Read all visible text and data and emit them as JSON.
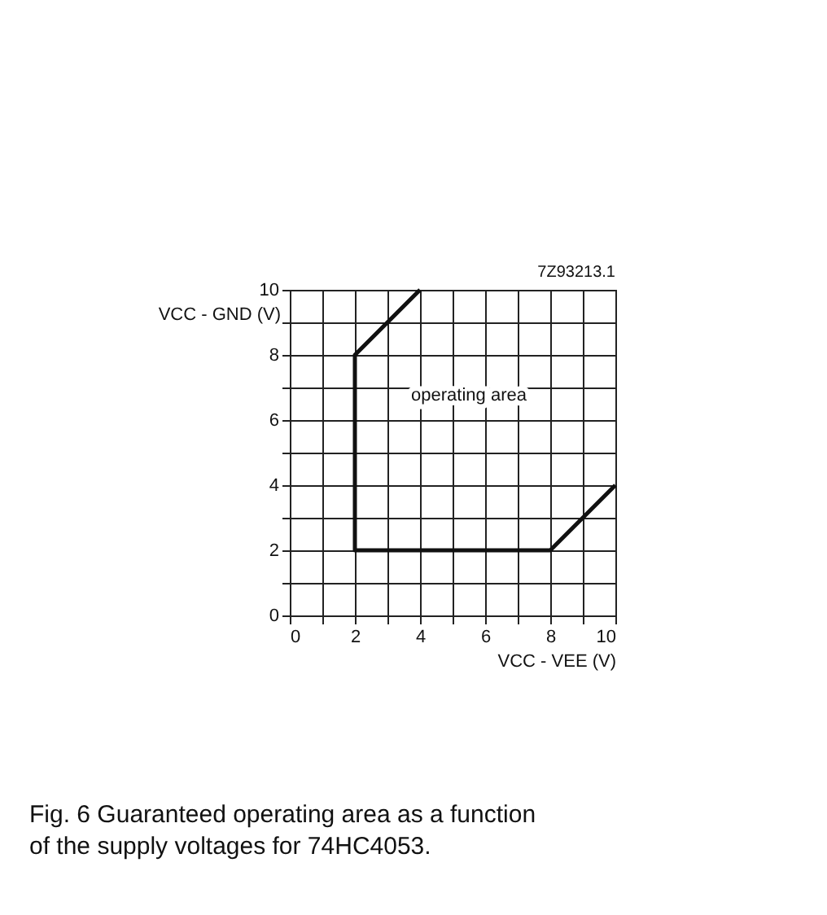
{
  "chart_data": {
    "type": "line",
    "xlabel": "VCC - VEE (V)",
    "ylabel": "VCC - GND (V)",
    "x": [
      4,
      2,
      2,
      8,
      10
    ],
    "series": [
      {
        "color": "#111111",
        "values": [
          10,
          8,
          2,
          2,
          4
        ]
      }
    ],
    "xlim": [
      0,
      10
    ],
    "ylim": [
      0,
      10
    ],
    "xticks": [
      0,
      {
        "value": 1,
        "label": null
      },
      2,
      {
        "value": 3,
        "label": null
      },
      4,
      {
        "value": 5,
        "label": null
      },
      6,
      {
        "value": 7,
        "label": null
      },
      8,
      {
        "value": 9,
        "label": null
      },
      10
    ],
    "yticks": [
      0,
      {
        "value": 1,
        "label": null
      },
      2,
      {
        "value": 3,
        "label": null
      },
      4,
      {
        "value": 5,
        "label": null
      },
      6,
      {
        "value": 7,
        "label": null
      },
      8,
      {
        "value": 9,
        "label": null
      },
      10
    ],
    "grid": true,
    "marker": "none",
    "line_style": "solid",
    "annotations": [
      "operating area",
      "7Z93213.1",
      "Fig. 6 Guaranteed operating area as a function of the supply voltages for 74HC4053."
    ]
  }
}
